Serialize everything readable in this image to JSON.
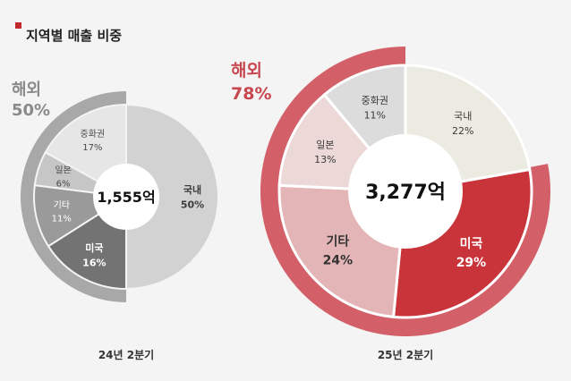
{
  "header": {
    "title": "지역별 매출 비중",
    "marker_color": "#c1272d"
  },
  "chart_data": [
    {
      "type": "pie",
      "period": "24년 2분기",
      "total": "1,555억",
      "outer_ring": {
        "label": "해외",
        "value": "50%",
        "percent": 50,
        "color": "#a8a8a8",
        "label_color": "#8a8a8a"
      },
      "slices": [
        {
          "name": "국내",
          "label": "50%",
          "value": 50,
          "color": "#d2d2d2",
          "text_color": "#3a3a3a"
        },
        {
          "name": "미국",
          "label": "16%",
          "value": 16,
          "color": "#737373",
          "text_color": "#ffffff"
        },
        {
          "name": "기타",
          "label": "11%",
          "value": 11,
          "color": "#9a9a9a",
          "text_color": "#ffffff"
        },
        {
          "name": "일본",
          "label": "6%",
          "value": 6,
          "color": "#c6c6c6",
          "text_color": "#4a4a4a"
        },
        {
          "name": "중화권",
          "label": "17%",
          "value": 17,
          "color": "#e6e6e6",
          "text_color": "#4a4a4a"
        }
      ]
    },
    {
      "type": "pie",
      "period": "25년 2분기",
      "total": "3,277억",
      "outer_ring": {
        "label": "해외",
        "value": "78%",
        "percent": 78,
        "color": "#d35f68",
        "label_color": "#c8474f"
      },
      "slices": [
        {
          "name": "국내",
          "label": "22%",
          "value": 22,
          "color": "#ecebe1",
          "text_color": "#3a3a3a"
        },
        {
          "name": "미국",
          "label": "29%",
          "value": 29,
          "color": "#c9333a",
          "text_color": "#ffffff"
        },
        {
          "name": "기타",
          "label": "24%",
          "value": 24,
          "color": "#e3b5b7",
          "text_color": "#333333"
        },
        {
          "name": "일본",
          "label": "13%",
          "value": 13,
          "color": "#edd8d8",
          "text_color": "#3a3a3a"
        },
        {
          "name": "중화권",
          "label": "11%",
          "value": 11,
          "color": "#dcdcdc",
          "text_color": "#3a3a3a"
        }
      ]
    }
  ]
}
